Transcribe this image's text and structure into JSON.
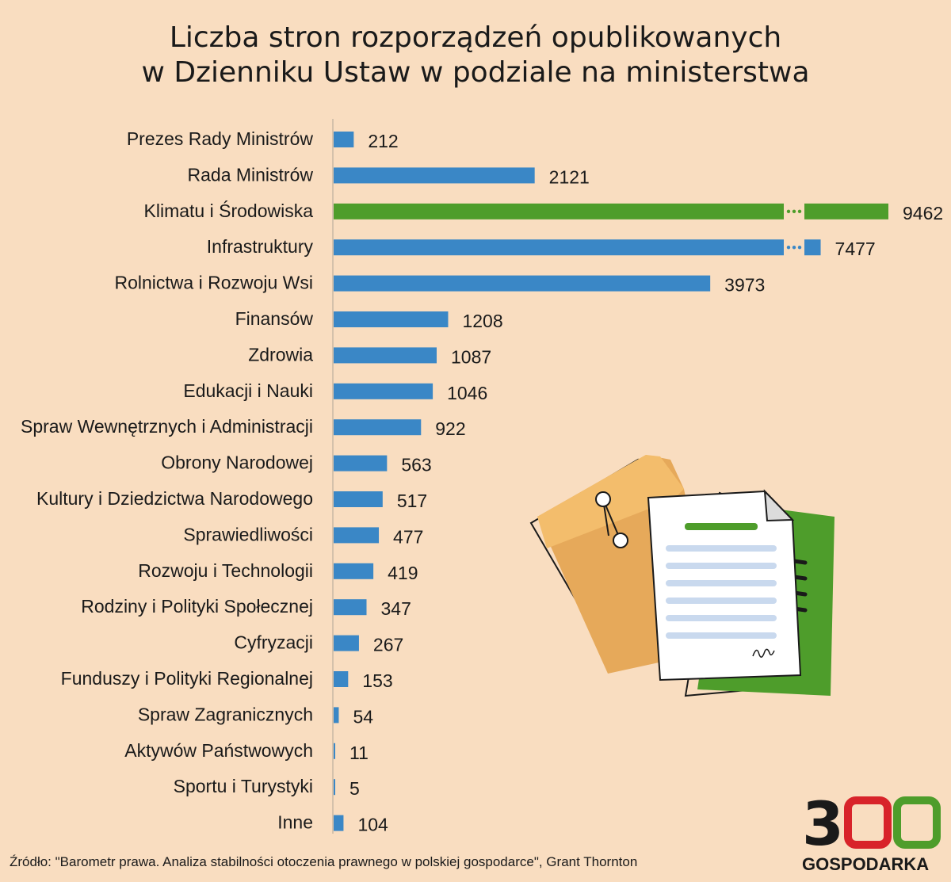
{
  "title": {
    "line1": "Liczba stron rozporządzeń opublikowanych",
    "line2": "w Dzienniku Ustaw w podziale na ministerstwa"
  },
  "chart_data": {
    "type": "bar",
    "orientation": "horizontal",
    "categories": [
      "Prezes Rady Ministrów",
      "Rada Ministrów",
      "Klimatu i Środowiska",
      "Infrastruktury",
      "Rolnictwa i Rozwoju Wsi",
      "Finansów",
      "Zdrowia",
      "Edukacji i Nauki",
      "Spraw Wewnętrznych i Administracji",
      "Obrony Narodowej",
      "Kultury i Dziedzictwa Narodowego",
      "Sprawiedliwości",
      "Rozwoju i Technologii",
      "Rodziny i Polityki Społecznej",
      "Cyfryzacji",
      "Funduszy i Polityki Regionalnej",
      "Spraw Zagranicznych",
      "Aktywów Państwowych",
      "Sportu i Turystyki",
      "Inne"
    ],
    "values": [
      212,
      2121,
      9462,
      7477,
      3973,
      1208,
      1087,
      1046,
      922,
      563,
      517,
      477,
      419,
      347,
      267,
      153,
      54,
      11,
      5,
      104
    ],
    "data_labels": [
      "212",
      "2121",
      "9462",
      "7477",
      "3973",
      "1208",
      "1087",
      "1046",
      "922",
      "563",
      "517",
      "477",
      "419",
      "347",
      "267",
      "153",
      "54",
      "11",
      "5",
      "104"
    ],
    "highlight_index": 2,
    "broken_axis_bars": [
      2,
      3
    ],
    "colors": {
      "bar": "#3a87c6",
      "highlight": "#4e9d2b",
      "axis": "#c8b8a4"
    }
  },
  "illustration": {
    "icons": [
      "envelope-folder-icon",
      "document-with-signature-icon",
      "green-folder-icon"
    ],
    "colors": {
      "folder": "#e6a95a",
      "folder_light": "#f3bd6c",
      "paper": "#ffffff",
      "lines": "#c9d9ee",
      "green": "#4e9d2b"
    }
  },
  "source": "Źródło: \"Barometr prawa. Analiza stabilności otoczenia prawnego w polskiej gospodarce\", Grant Thornton",
  "logo": {
    "number": "300",
    "text": "GOSPODARKA",
    "colors": {
      "dark": "#1a1a1a",
      "red": "#d8232a",
      "green": "#4e9d2b"
    }
  }
}
